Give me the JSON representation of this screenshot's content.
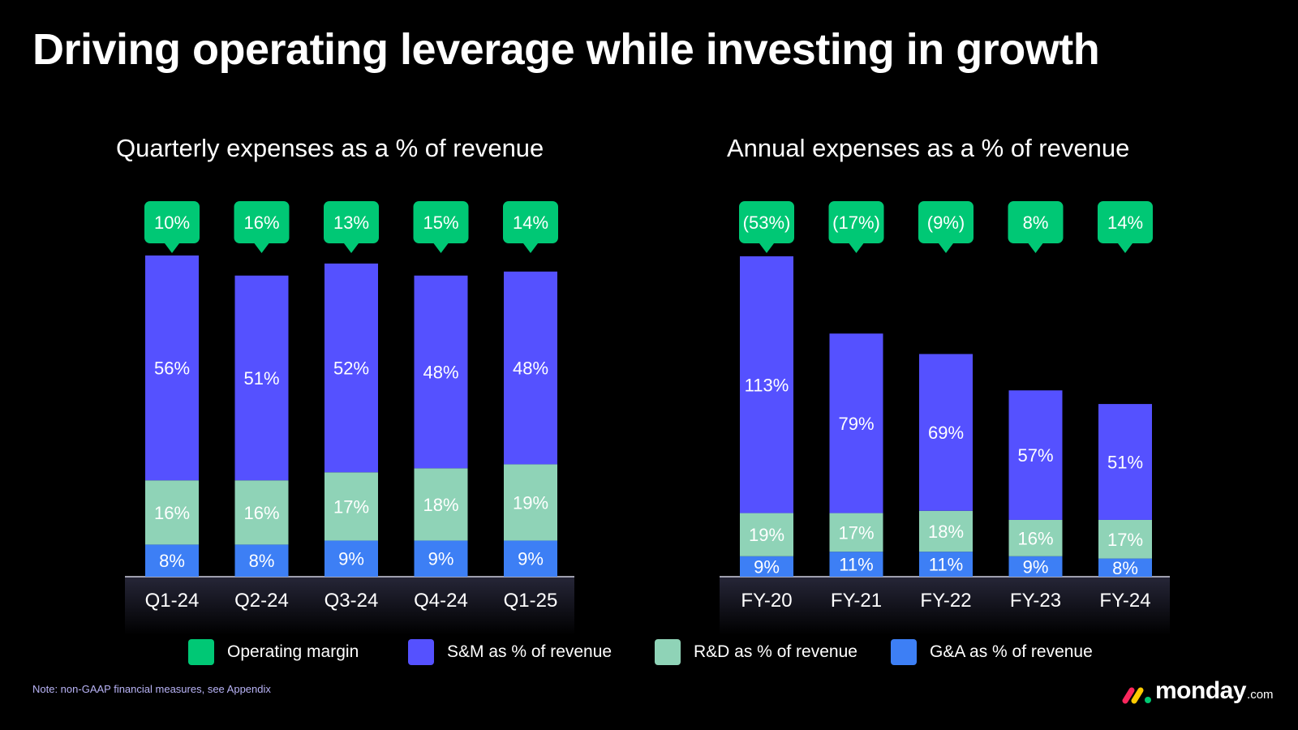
{
  "title": "Driving operating leverage while investing in growth",
  "colors": {
    "operating_margin": "#00c875",
    "sm": "#5551ff",
    "rd": "#8fd3b7",
    "ga": "#3d7ff5",
    "background": "#000000"
  },
  "legend": [
    {
      "label": "Operating margin",
      "color": "#00c875"
    },
    {
      "label": "S&M as % of revenue",
      "color": "#5551ff"
    },
    {
      "label": "R&D as % of revenue",
      "color": "#8fd3b7"
    },
    {
      "label": "G&A as % of revenue",
      "color": "#3d7ff5"
    }
  ],
  "note": "Note: non-GAAP financial measures, see Appendix",
  "logo": {
    "word": "monday",
    "suffix": ".com"
  },
  "chart_data": [
    {
      "type": "bar",
      "stacked": true,
      "title": "Quarterly expenses as a % of revenue",
      "categories": [
        "Q1-24",
        "Q2-24",
        "Q3-24",
        "Q4-24",
        "Q1-25"
      ],
      "series": [
        {
          "name": "G&A as % of revenue",
          "values": [
            8,
            8,
            9,
            9,
            9
          ],
          "labels": [
            "8%",
            "8%",
            "9%",
            "9%",
            "9%"
          ]
        },
        {
          "name": "R&D as % of revenue",
          "values": [
            16,
            16,
            17,
            18,
            19
          ],
          "labels": [
            "16%",
            "16%",
            "17%",
            "18%",
            "19%"
          ]
        },
        {
          "name": "S&M as % of revenue",
          "values": [
            56,
            51,
            52,
            48,
            48
          ],
          "labels": [
            "56%",
            "51%",
            "52%",
            "48%",
            "48%"
          ]
        }
      ],
      "operating_margin": {
        "values": [
          10,
          16,
          13,
          15,
          14
        ],
        "labels": [
          "10%",
          "16%",
          "13%",
          "15%",
          "14%"
        ]
      },
      "ylim": [
        0,
        80
      ]
    },
    {
      "type": "bar",
      "stacked": true,
      "title": "Annual expenses as a % of revenue",
      "categories": [
        "FY-20",
        "FY-21",
        "FY-22",
        "FY-23",
        "FY-24"
      ],
      "series": [
        {
          "name": "G&A as % of revenue",
          "values": [
            9,
            11,
            11,
            9,
            8
          ],
          "labels": [
            "9%",
            "11%",
            "11%",
            "9%",
            "8%"
          ]
        },
        {
          "name": "R&D as % of revenue",
          "values": [
            19,
            17,
            18,
            16,
            17
          ],
          "labels": [
            "19%",
            "17%",
            "18%",
            "16%",
            "17%"
          ]
        },
        {
          "name": "S&M as % of revenue",
          "values": [
            113,
            79,
            69,
            57,
            51
          ],
          "labels": [
            "113%",
            "79%",
            "69%",
            "57%",
            "51%"
          ]
        }
      ],
      "operating_margin": {
        "values": [
          -53,
          -17,
          -9,
          8,
          14
        ],
        "labels": [
          "(53%)",
          "(17%)",
          "(9%)",
          "8%",
          "14%"
        ]
      },
      "ylim": [
        0,
        141
      ]
    }
  ]
}
